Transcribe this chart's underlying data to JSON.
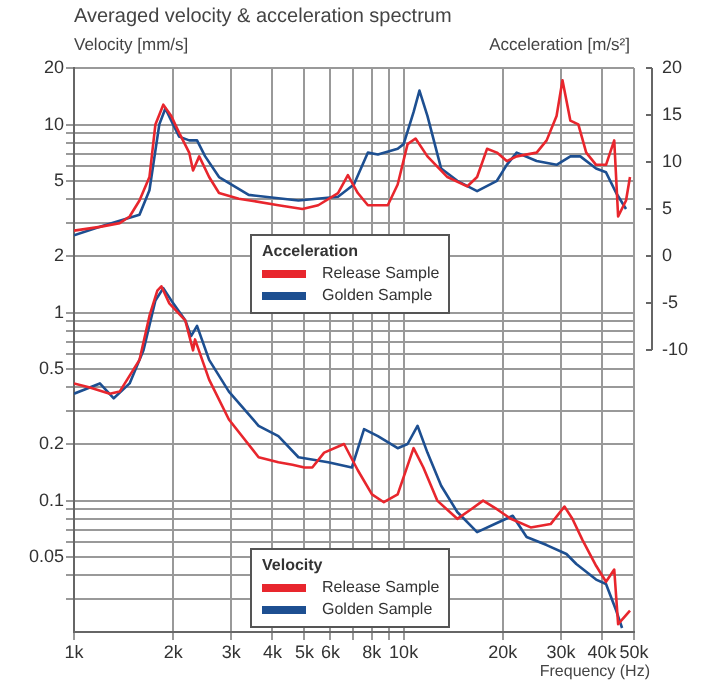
{
  "chart_data": {
    "type": "line",
    "title": "Averaged velocity & acceleration spectrum",
    "ylabel": "Velocity [mm/s]",
    "y2label": "Acceleration [m/s²]",
    "xlabel": "Frequency (Hz)",
    "log": "xy",
    "grid": true,
    "legend": "center",
    "annotations": [
      "Acceleration",
      "Velocity"
    ],
    "xlim": [
      1000,
      50000
    ],
    "xticks": [
      {
        "value": 1000,
        "label": "1k"
      },
      {
        "value": 2000,
        "label": "2k"
      },
      {
        "value": 3000,
        "label": "3k"
      },
      {
        "value": 4000,
        "label": "4k"
      },
      {
        "value": 5000,
        "label": "5k"
      },
      {
        "value": 6000,
        "label": "6k"
      },
      {
        "value": 7000,
        "label": null
      },
      {
        "value": 8000,
        "label": "8k"
      },
      {
        "value": 9000,
        "label": null
      },
      {
        "value": 10000,
        "label": "10k"
      },
      {
        "value": 20000,
        "label": "20k"
      },
      {
        "value": 30000,
        "label": "30k"
      },
      {
        "value": 40000,
        "label": "40k"
      },
      {
        "value": 50000,
        "label": "50k"
      }
    ],
    "ylim": [
      0.02,
      20
    ],
    "yticks": [
      20,
      {
        "value": 9,
        "label": null
      },
      {
        "value": 8,
        "label": null
      },
      {
        "value": 7,
        "label": null
      },
      {
        "value": 6,
        "label": null
      },
      10,
      5,
      {
        "value": 4,
        "label": null
      },
      {
        "value": 3,
        "label": null
      },
      2,
      1,
      {
        "value": 0.9,
        "label": null
      },
      {
        "value": 0.8,
        "label": null
      },
      {
        "value": 0.7,
        "label": null
      },
      {
        "value": 0.6,
        "label": null
      },
      0.5,
      {
        "value": 0.4,
        "label": null
      },
      {
        "value": 0.3,
        "label": null
      },
      0.2,
      0.1,
      {
        "value": 0.09,
        "label": null
      },
      {
        "value": 0.08,
        "label": null
      },
      {
        "value": 0.07,
        "label": null
      },
      {
        "value": 0.06,
        "label": null
      },
      0.05,
      {
        "value": 0.04,
        "label": null
      },
      {
        "value": 0.03,
        "label": null
      }
    ],
    "y2lim": [
      -40,
      20
    ],
    "y2ticks": [
      -10,
      -5,
      0,
      5,
      10,
      15,
      20
    ],
    "series": [
      {
        "name": "Release Sample",
        "color": "#e8262d",
        "axis": "y2",
        "x": [
          1000,
          1198,
          1376,
          1475,
          1580,
          1694,
          1766,
          1866,
          1973,
          2085,
          2236,
          2297,
          2398,
          2570,
          2754,
          3162,
          4169,
          4931,
          5508,
          6324,
          6776,
          7262,
          7793,
          8954,
          9594,
          10280,
          10870,
          11810,
          13580,
          15590,
          16710,
          17910,
          19190,
          20560,
          22030,
          25330,
          27160,
          29110,
          30340,
          32060,
          33890,
          35810,
          38370,
          41120,
          43550,
          44750,
          47290,
          48620
        ],
        "values": [
          2.7,
          3.1,
          3.5,
          4.2,
          5.9,
          8.4,
          14,
          16.1,
          14.9,
          13.1,
          11,
          9.1,
          10.6,
          8.4,
          6.7,
          6.1,
          5.4,
          5,
          5.4,
          6.7,
          8.6,
          6.7,
          5.4,
          5.4,
          7.6,
          11.9,
          12.5,
          10.6,
          8.4,
          7.4,
          8.4,
          11.4,
          11,
          10.1,
          10.6,
          11,
          12.3,
          14.9,
          18.7,
          14.4,
          14,
          11,
          9.7,
          9.7,
          12.3,
          4.2,
          5.9,
          8.4
        ]
      },
      {
        "name": "Golden Sample",
        "color": "#1d4f91",
        "axis": "y2",
        "x": [
          1000,
          1198,
          1580,
          1694,
          1815,
          1893,
          1973,
          2085,
          2236,
          2362,
          2500,
          2754,
          3388,
          4797,
          6324,
          7066,
          7793,
          8356,
          9594,
          10000,
          10720,
          11170,
          11810,
          13000,
          14550,
          16710,
          19190,
          20560,
          22030,
          25330,
          29110,
          32060,
          34360,
          38370,
          41120,
          44150,
          47290
        ],
        "values": [
          2.2,
          3.1,
          4.4,
          7,
          14,
          15.7,
          14.4,
          12.7,
          12.3,
          12.3,
          10.6,
          8.4,
          6.5,
          5.9,
          6.3,
          7.6,
          11,
          10.8,
          11.4,
          11.9,
          15.3,
          17.6,
          14.9,
          9.3,
          8,
          6.9,
          8,
          9.7,
          11,
          10.1,
          9.7,
          10.6,
          10.6,
          9.3,
          8.9,
          6.7,
          5
        ]
      },
      {
        "name": "Release Sample",
        "color": "#e8262d",
        "axis": "y",
        "x": [
          1000,
          1117,
          1284,
          1376,
          1580,
          1694,
          1790,
          1841,
          1946,
          2175,
          2297,
          2329,
          2570,
          2951,
          3631,
          4169,
          4600,
          5000,
          5284,
          5741,
          6596,
          7262,
          8017,
          8710,
          9594,
          10720,
          11480,
          12650,
          14550,
          16030,
          17420,
          19190,
          21140,
          24300,
          27930,
          30760,
          32510,
          34840,
          38370,
          41120,
          43550,
          44750,
          48620
        ],
        "values": [
          0.42,
          0.4,
          0.37,
          0.38,
          0.56,
          0.96,
          1.31,
          1.38,
          1.12,
          0.91,
          0.63,
          0.72,
          0.44,
          0.27,
          0.17,
          0.16,
          0.155,
          0.15,
          0.15,
          0.18,
          0.2,
          0.145,
          0.108,
          0.098,
          0.108,
          0.19,
          0.15,
          0.1,
          0.08,
          0.09,
          0.1,
          0.09,
          0.08,
          0.072,
          0.075,
          0.093,
          0.08,
          0.062,
          0.045,
          0.037,
          0.043,
          0.022,
          0.026
        ]
      },
      {
        "name": "Golden Sample",
        "color": "#1d4f91",
        "axis": "y",
        "x": [
          1000,
          1198,
          1320,
          1475,
          1625,
          1766,
          1866,
          2000,
          2175,
          2266,
          2362,
          2570,
          2951,
          3631,
          4169,
          4797,
          5902,
          6966,
          7586,
          8356,
          9594,
          10280,
          11020,
          11810,
          13000,
          14550,
          16710,
          19190,
          21430,
          23610,
          27160,
          31190,
          33420,
          38370,
          41120,
          44150,
          46000
        ],
        "values": [
          0.37,
          0.42,
          0.35,
          0.42,
          0.63,
          1.16,
          1.35,
          1.12,
          0.91,
          0.75,
          0.85,
          0.56,
          0.38,
          0.25,
          0.22,
          0.17,
          0.16,
          0.15,
          0.24,
          0.22,
          0.19,
          0.2,
          0.25,
          0.18,
          0.12,
          0.087,
          0.068,
          0.076,
          0.083,
          0.064,
          0.058,
          0.052,
          0.046,
          0.038,
          0.036,
          0.026,
          0.021
        ]
      }
    ]
  }
}
